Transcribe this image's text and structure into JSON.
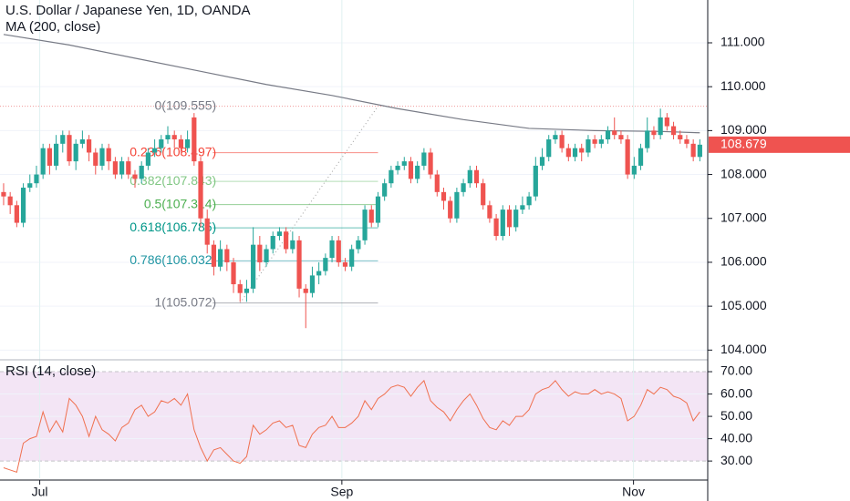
{
  "chart_data": {
    "type": "candlestick",
    "title": "U.S. Dollar / Japanese Yen, 1D, OANDA",
    "up_color": "#26a69a",
    "down_color": "#ef5350",
    "ylim": [
      103.82,
      111.975
    ],
    "yticks": [
      {
        "value": 104,
        "label": "104.000"
      },
      {
        "value": 105,
        "label": "105.000"
      },
      {
        "value": 106,
        "label": "106.000"
      },
      {
        "value": 107,
        "label": "107.000"
      },
      {
        "value": 108,
        "label": "108.000"
      },
      {
        "value": 109,
        "label": "109.000"
      },
      {
        "value": 110,
        "label": "110.000"
      },
      {
        "value": 111,
        "label": "111.000"
      }
    ],
    "xlim": [
      -0.55,
      107.2
    ],
    "xticks": [
      {
        "value": 5.5,
        "label": "Jul"
      },
      {
        "value": 51.5,
        "label": "Sep"
      },
      {
        "value": 95.9,
        "label": "Nov"
      }
    ],
    "ohlc": [
      [
        107.6,
        107.8,
        107.3,
        107.5
      ],
      [
        107.5,
        107.6,
        107.1,
        107.3
      ],
      [
        107.3,
        107.4,
        106.8,
        106.9
      ],
      [
        106.9,
        107.8,
        106.8,
        107.7
      ],
      [
        107.7,
        108.0,
        107.6,
        107.8
      ],
      [
        107.8,
        108.2,
        107.7,
        108.0
      ],
      [
        108.0,
        108.7,
        107.9,
        108.6
      ],
      [
        108.6,
        108.7,
        108.0,
        108.2
      ],
      [
        108.2,
        108.9,
        108.1,
        108.7
      ],
      [
        108.7,
        109.0,
        108.5,
        108.9
      ],
      [
        108.9,
        109.0,
        108.2,
        108.3
      ],
      [
        108.3,
        108.8,
        108.1,
        108.7
      ],
      [
        108.7,
        109.0,
        108.6,
        108.8
      ],
      [
        108.8,
        108.9,
        108.3,
        108.5
      ],
      [
        108.5,
        108.6,
        108.0,
        108.2
      ],
      [
        108.2,
        108.7,
        108.1,
        108.6
      ],
      [
        108.6,
        108.7,
        108.1,
        108.3
      ],
      [
        108.3,
        108.4,
        107.9,
        108.0
      ],
      [
        108.0,
        108.4,
        107.9,
        108.3
      ],
      [
        108.3,
        108.4,
        107.9,
        108.0
      ],
      [
        108.0,
        108.1,
        107.7,
        107.9
      ],
      [
        107.9,
        108.3,
        107.8,
        108.2
      ],
      [
        108.2,
        108.6,
        108.1,
        108.5
      ],
      [
        108.5,
        108.8,
        108.4,
        108.6
      ],
      [
        108.6,
        108.9,
        108.5,
        108.8
      ],
      [
        108.8,
        109.1,
        108.7,
        108.9
      ],
      [
        108.9,
        109.0,
        108.6,
        108.8
      ],
      [
        108.8,
        108.9,
        108.5,
        108.6
      ],
      [
        108.6,
        109.0,
        108.5,
        108.8
      ],
      [
        109.3,
        109.4,
        108.2,
        108.3
      ],
      [
        108.3,
        108.4,
        106.8,
        107.0
      ],
      [
        107.0,
        107.2,
        106.2,
        106.4
      ],
      [
        106.4,
        106.5,
        105.7,
        105.9
      ],
      [
        105.9,
        106.5,
        105.8,
        106.3
      ],
      [
        106.3,
        106.4,
        105.8,
        106.0
      ],
      [
        106.0,
        106.1,
        105.3,
        105.5
      ],
      [
        105.5,
        105.6,
        105.1,
        105.3
      ],
      [
        105.3,
        105.6,
        105.1,
        105.4
      ],
      [
        105.4,
        106.8,
        105.3,
        106.4
      ],
      [
        106.4,
        106.6,
        105.8,
        106.0
      ],
      [
        106.0,
        106.4,
        105.9,
        106.3
      ],
      [
        106.3,
        106.7,
        106.2,
        106.6
      ],
      [
        106.6,
        106.8,
        106.5,
        106.7
      ],
      [
        106.7,
        106.8,
        106.2,
        106.3
      ],
      [
        106.3,
        106.7,
        106.2,
        106.5
      ],
      [
        106.5,
        106.6,
        105.2,
        105.4
      ],
      [
        105.4,
        105.5,
        104.5,
        105.3
      ],
      [
        105.3,
        105.9,
        105.2,
        105.7
      ],
      [
        105.7,
        106.0,
        105.5,
        105.8
      ],
      [
        105.8,
        106.2,
        105.7,
        106.1
      ],
      [
        106.1,
        106.6,
        106.0,
        106.5
      ],
      [
        106.5,
        106.6,
        105.9,
        106.0
      ],
      [
        106.0,
        106.1,
        105.8,
        105.9
      ],
      [
        105.9,
        106.4,
        105.8,
        106.3
      ],
      [
        106.3,
        106.6,
        106.2,
        106.5
      ],
      [
        106.5,
        107.3,
        106.4,
        107.2
      ],
      [
        107.2,
        107.3,
        106.8,
        106.9
      ],
      [
        106.9,
        107.6,
        106.8,
        107.5
      ],
      [
        107.5,
        107.9,
        107.4,
        107.8
      ],
      [
        107.8,
        108.2,
        107.7,
        108.1
      ],
      [
        108.1,
        108.3,
        108.0,
        108.2
      ],
      [
        108.2,
        108.4,
        108.1,
        108.3
      ],
      [
        108.3,
        108.4,
        107.8,
        107.9
      ],
      [
        107.9,
        108.3,
        107.8,
        108.2
      ],
      [
        108.2,
        108.6,
        108.1,
        108.5
      ],
      [
        108.5,
        108.6,
        107.9,
        108.0
      ],
      [
        108.0,
        108.1,
        107.5,
        107.6
      ],
      [
        107.6,
        107.7,
        107.2,
        107.4
      ],
      [
        107.4,
        107.5,
        106.9,
        107.0
      ],
      [
        107.0,
        107.7,
        106.9,
        107.6
      ],
      [
        107.6,
        107.9,
        107.5,
        107.8
      ],
      [
        107.8,
        108.2,
        107.7,
        108.1
      ],
      [
        108.1,
        108.2,
        107.7,
        107.8
      ],
      [
        107.8,
        107.9,
        107.2,
        107.3
      ],
      [
        107.3,
        107.4,
        106.9,
        107.0
      ],
      [
        107.0,
        107.1,
        106.5,
        106.6
      ],
      [
        106.6,
        107.3,
        106.5,
        107.2
      ],
      [
        107.2,
        107.3,
        106.6,
        106.8
      ],
      [
        106.8,
        107.3,
        106.7,
        107.2
      ],
      [
        107.2,
        107.5,
        107.1,
        107.3
      ],
      [
        107.3,
        107.6,
        107.2,
        107.5
      ],
      [
        107.5,
        108.4,
        107.4,
        108.2
      ],
      [
        108.2,
        108.6,
        108.1,
        108.4
      ],
      [
        108.4,
        108.9,
        108.3,
        108.8
      ],
      [
        108.8,
        109.0,
        108.7,
        108.9
      ],
      [
        108.9,
        109.0,
        108.5,
        108.6
      ],
      [
        108.6,
        108.7,
        108.3,
        108.4
      ],
      [
        108.4,
        108.7,
        108.3,
        108.6
      ],
      [
        108.6,
        108.7,
        108.3,
        108.5
      ],
      [
        108.5,
        108.9,
        108.4,
        108.8
      ],
      [
        108.8,
        108.9,
        108.6,
        108.7
      ],
      [
        108.7,
        108.9,
        108.6,
        108.8
      ],
      [
        108.8,
        109.1,
        108.7,
        109.0
      ],
      [
        109.0,
        109.3,
        108.8,
        108.9
      ],
      [
        108.9,
        109.0,
        108.7,
        108.8
      ],
      [
        108.8,
        108.9,
        107.9,
        108.0
      ],
      [
        108.0,
        108.4,
        107.9,
        108.2
      ],
      [
        108.2,
        108.7,
        108.1,
        108.6
      ],
      [
        108.6,
        109.3,
        108.5,
        109.0
      ],
      [
        109.0,
        109.1,
        108.8,
        108.9
      ],
      [
        108.9,
        109.5,
        108.8,
        109.3
      ],
      [
        109.3,
        109.4,
        109.0,
        109.1
      ],
      [
        109.1,
        109.2,
        108.8,
        108.9
      ],
      [
        108.9,
        109.0,
        108.7,
        108.8
      ],
      [
        108.8,
        108.9,
        108.6,
        108.7
      ],
      [
        108.7,
        108.8,
        108.3,
        108.4
      ],
      [
        108.4,
        108.8,
        108.3,
        108.679
      ]
    ],
    "ma": {
      "name": "MA (200, close)",
      "color": "#787b86",
      "x": [
        0,
        10,
        20,
        30,
        40,
        50,
        60,
        70,
        80,
        90,
        100,
        106
      ],
      "values": [
        111.19,
        110.95,
        110.65,
        110.35,
        110.05,
        109.8,
        109.5,
        109.25,
        109.05,
        109.0,
        108.98,
        108.95
      ]
    },
    "fib": {
      "from_index": 36,
      "to_index": 57,
      "levels": [
        {
          "label": "0(109.555)",
          "value": 109.555,
          "color": "#787b86"
        },
        {
          "label": "0.236(108.497)",
          "value": 108.497,
          "color": "#f44336"
        },
        {
          "label": "0.382(107.843)",
          "value": 107.843,
          "color": "#81c784"
        },
        {
          "label": "0.5(107.314)",
          "value": 107.314,
          "color": "#4caf50"
        },
        {
          "label": "0.618(106.785)",
          "value": 106.785,
          "color": "#009688"
        },
        {
          "label": "0.786(106.032)",
          "value": 106.032,
          "color": "#2196a3"
        },
        {
          "label": "1(105.072)",
          "value": 105.072,
          "color": "#787b86"
        }
      ]
    },
    "last_price": 108.679,
    "rsi": {
      "name": "RSI (14, close)",
      "color": "#f0704f",
      "ylim": [
        22.3,
        74.5
      ],
      "yticks": [
        {
          "value": 30,
          "label": "30.00"
        },
        {
          "value": 40,
          "label": "40.00"
        },
        {
          "value": 50,
          "label": "50.00"
        },
        {
          "value": 60,
          "label": "60.00"
        },
        {
          "value": 70,
          "label": "70.00"
        }
      ],
      "values": [
        27,
        26,
        25,
        38,
        40,
        41,
        52,
        43,
        48,
        43,
        58,
        55,
        50,
        41,
        50,
        44,
        42,
        39,
        45,
        47,
        53,
        55,
        50,
        52,
        57,
        56,
        58,
        55,
        60,
        44,
        36,
        30,
        35,
        36,
        33,
        30,
        29,
        32,
        46,
        42,
        44,
        47,
        48,
        45,
        46,
        37,
        36,
        42,
        45,
        46,
        50,
        45,
        45,
        47,
        50,
        57,
        53,
        58,
        60,
        63,
        64,
        63,
        59,
        63,
        66,
        57,
        54,
        52,
        48,
        53,
        57,
        60,
        55,
        49,
        45,
        44,
        48,
        46,
        50,
        50,
        53,
        60,
        62,
        63,
        66,
        62,
        59,
        61,
        60,
        60,
        62,
        60,
        61,
        60,
        58,
        48,
        50,
        55,
        62,
        60,
        63,
        62,
        59,
        58,
        56,
        48,
        52
      ]
    }
  }
}
